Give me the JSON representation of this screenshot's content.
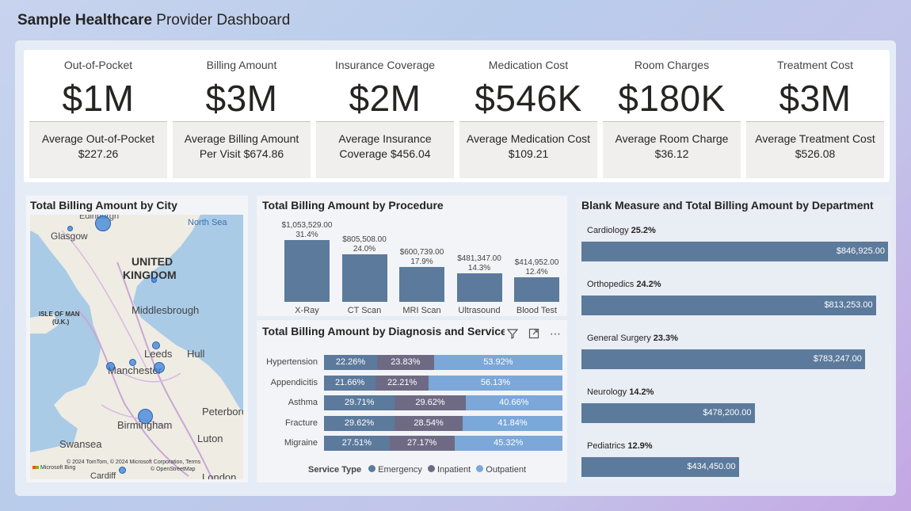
{
  "header": {
    "title_bold": "Sample Healthcare",
    "title_rest": " Provider Dashboard"
  },
  "kpis": [
    {
      "title": "Out-of-Pocket",
      "value": "$1M",
      "sub": "Average Out-of-Pocket $227.26"
    },
    {
      "title": "Billing Amount",
      "value": "$3M",
      "sub": "Average Billing Amount Per Visit $674.86"
    },
    {
      "title": "Insurance Coverage",
      "value": "$2M",
      "sub": "Average Insurance Coverage $456.04"
    },
    {
      "title": "Medication Cost",
      "value": "$546K",
      "sub": "Average Medication Cost $109.21"
    },
    {
      "title": "Room Charges",
      "value": "$180K",
      "sub": "Average Room Charge $36.12"
    },
    {
      "title": "Treatment Cost",
      "value": "$3M",
      "sub": "Average Treatment Cost $526.08"
    }
  ],
  "map": {
    "title": "Total Billing Amount by City",
    "labels": {
      "edinburgh": "Edinburgh",
      "glasgow": "Glasgow",
      "north_sea": "North Sea",
      "united": "UNITED",
      "kingdom": "KINGDOM",
      "isle": "ISLE OF MAN",
      "uk": "(U.K.)",
      "middlesbrough": "Middlesbrough",
      "leeds": "Leeds",
      "hull": "Hull",
      "manchester": "Manchester",
      "peterborough": "Peterboro",
      "birmingham": "Birmingham",
      "swansea": "Swansea",
      "luton": "Luton",
      "cardiff": "Cardiff",
      "london": "London"
    },
    "attribution": "© 2024 TomTom, © 2024 Microsoft Corporation, Terms",
    "osm": "© OpenStreetMap",
    "bing": "Microsoft Bing"
  },
  "procedure": {
    "title": "Total Billing Amount by Procedure"
  },
  "diagnosis": {
    "title": "Total Billing Amount by Diagnosis and Service T",
    "legend_title": "Service Type",
    "legend": [
      "Emergency",
      "Inpatient",
      "Outpatient"
    ]
  },
  "department": {
    "title": "Blank Measure and Total Billing Amount by Department"
  },
  "colors": {
    "bar": "#5b7a9c",
    "emergency": "#5b7a9c",
    "inpatient": "#6f6a84",
    "outpatient": "#7ba7d9"
  },
  "chart_data": [
    {
      "type": "bar",
      "title": "Total Billing Amount by Procedure",
      "categories": [
        "X-Ray",
        "CT Scan",
        "MRI Scan",
        "Ultrasound",
        "Blood Test"
      ],
      "values": [
        1053529,
        805508,
        600739,
        481347,
        414952
      ],
      "value_labels": [
        "$1,053,529.00",
        "$805,508.00",
        "$600,739.00",
        "$481,347.00",
        "$414,952.00"
      ],
      "pct_labels": [
        "31.4%",
        "24.0%",
        "17.9%",
        "14.3%",
        "12.4%"
      ]
    },
    {
      "type": "bar",
      "title": "Total Billing Amount by Diagnosis and Service T",
      "categories": [
        "Hypertension",
        "Appendicitis",
        "Asthma",
        "Fracture",
        "Migraine"
      ],
      "series": [
        {
          "name": "Emergency",
          "values": [
            22.26,
            21.66,
            29.71,
            29.62,
            27.51
          ]
        },
        {
          "name": "Inpatient",
          "values": [
            23.83,
            22.21,
            29.62,
            28.54,
            27.17
          ]
        },
        {
          "name": "Outpatient",
          "values": [
            53.92,
            56.13,
            40.66,
            41.84,
            45.32
          ]
        }
      ],
      "labels": [
        [
          "22.26%",
          "23.83%",
          "53.92%"
        ],
        [
          "21.66%",
          "22.21%",
          "56.13%"
        ],
        [
          "29.71%",
          "29.62%",
          "40.66%"
        ],
        [
          "29.62%",
          "28.54%",
          "41.84%"
        ],
        [
          "27.51%",
          "27.17%",
          "45.32%"
        ]
      ]
    },
    {
      "type": "bar",
      "title": "Blank Measure and Total Billing Amount by Department",
      "categories": [
        "Cardiology",
        "Orthopedics",
        "General Surgery",
        "Neurology",
        "Pediatrics"
      ],
      "pct_labels": [
        "25.2%",
        "24.2%",
        "23.3%",
        "14.2%",
        "12.9%"
      ],
      "values": [
        846925,
        813253,
        783247,
        478200,
        434450
      ],
      "value_labels": [
        "$846,925.00",
        "$813,253.00",
        "$783,247.00",
        "$478,200.00",
        "$434,450.00"
      ]
    }
  ]
}
